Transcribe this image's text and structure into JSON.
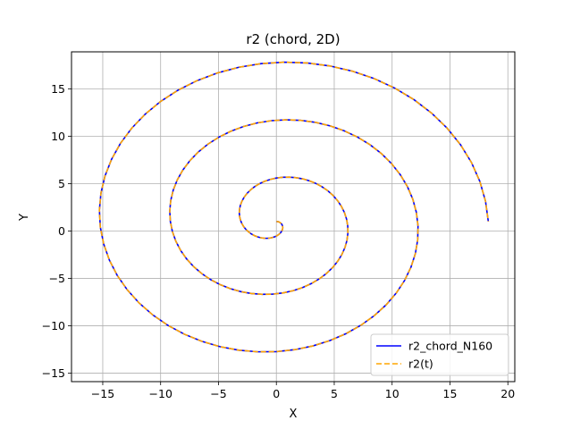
{
  "chart_data": {
    "type": "line",
    "title": "r2 (chord, 2D)",
    "xlabel": "X",
    "ylabel": "Y",
    "xlim": [
      -17.7,
      20.6
    ],
    "ylim": [
      -15.9,
      18.9
    ],
    "xticks": [
      -15,
      -10,
      -5,
      0,
      5,
      10,
      15,
      20
    ],
    "yticks": [
      -15,
      -10,
      -5,
      0,
      5,
      10,
      15
    ],
    "grid": true,
    "legend_position": "lower-right",
    "spiral": {
      "x0": 0,
      "y0": 1,
      "r0": 0.01,
      "growth_per_turn": 6.1,
      "turns": 3.0,
      "points": 160
    },
    "series": [
      {
        "name": "r2_chord_N160",
        "color": "#0000ff",
        "style": "solid"
      },
      {
        "name": "r2(t)",
        "color": "#ffa500",
        "style": "dashed"
      }
    ]
  }
}
